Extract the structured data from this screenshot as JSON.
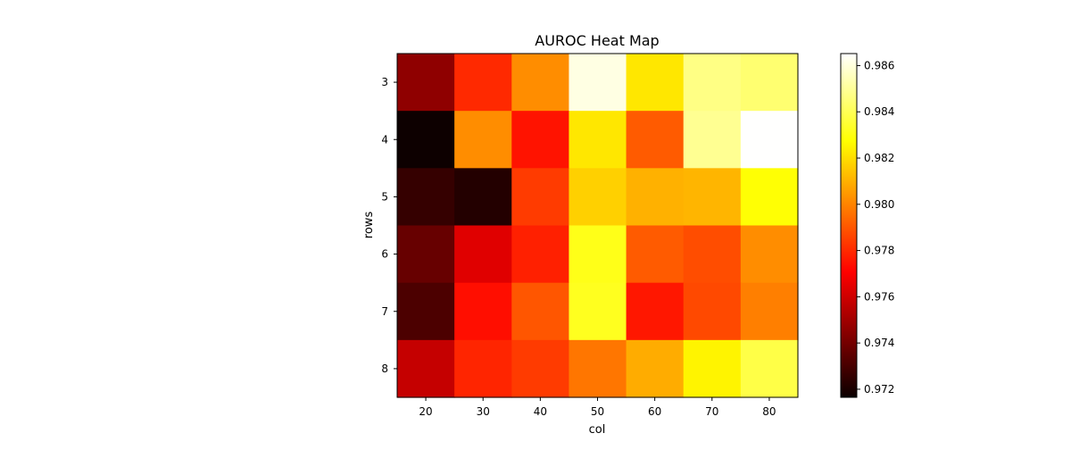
{
  "chart_data": {
    "type": "heatmap",
    "title": "AUROC Heat Map",
    "xlabel": "col",
    "ylabel": "rows",
    "x_categories": [
      "20",
      "30",
      "40",
      "50",
      "60",
      "70",
      "80"
    ],
    "y_categories": [
      "3",
      "4",
      "5",
      "6",
      "7",
      "8"
    ],
    "values": [
      [
        0.9746,
        0.978,
        0.9802,
        0.9861,
        0.9822,
        0.9847,
        0.9844
      ],
      [
        0.9717,
        0.9802,
        0.9775,
        0.9822,
        0.9791,
        0.9849,
        0.9865
      ],
      [
        0.9726,
        0.9722,
        0.9784,
        0.9817,
        0.981,
        0.9811,
        0.9828
      ],
      [
        0.9737,
        0.9764,
        0.9778,
        0.9831,
        0.9791,
        0.9788,
        0.9802
      ],
      [
        0.9731,
        0.9774,
        0.979,
        0.9832,
        0.9776,
        0.9787,
        0.9799
      ],
      [
        0.9758,
        0.9779,
        0.9784,
        0.9797,
        0.9809,
        0.9825,
        0.9838
      ]
    ],
    "colormap": "hot",
    "vmin": 0.97165,
    "vmax": 0.98652,
    "colorbar_ticks": [
      "0.972",
      "0.974",
      "0.976",
      "0.978",
      "0.980",
      "0.982",
      "0.984",
      "0.986"
    ],
    "colorbar_placement": "right",
    "grid": false
  }
}
